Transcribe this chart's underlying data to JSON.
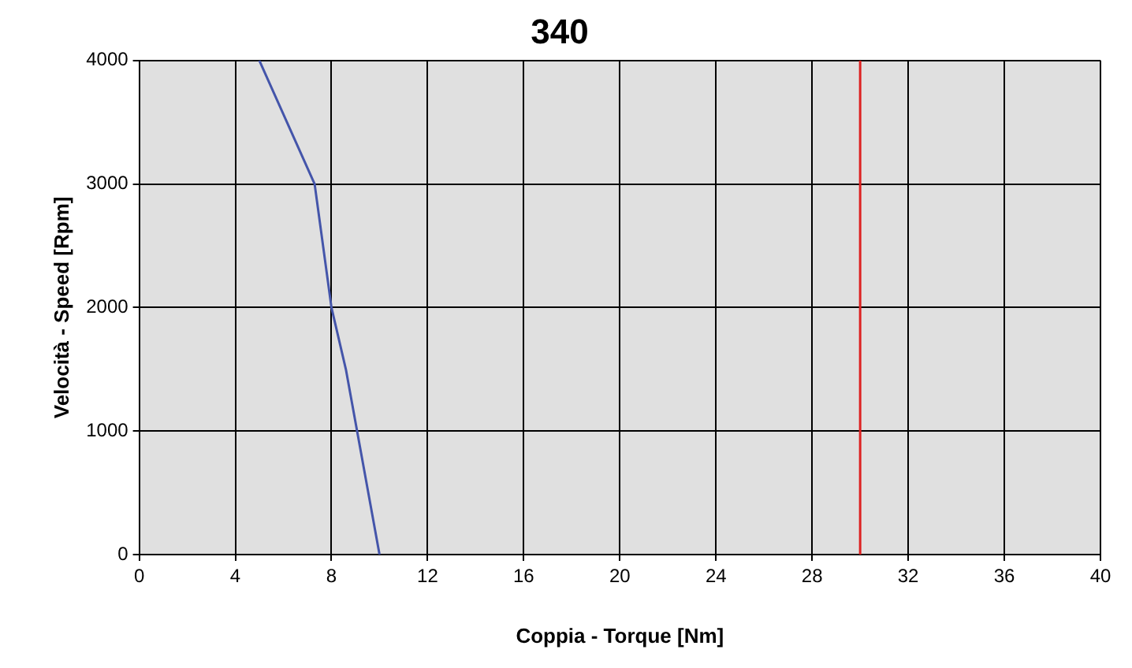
{
  "chart_data": {
    "type": "line",
    "title": "340",
    "xlabel": "Coppia - Torque [Nm]",
    "ylabel": "Velocità - Speed [Rpm]",
    "series": [
      {
        "color": "#4455aa",
        "x": [
          5,
          7.3,
          8,
          8.6,
          10
        ],
        "values": [
          4000,
          3000,
          2000,
          1500,
          0
        ]
      },
      {
        "color": "#dd2222",
        "x": [
          30,
          30,
          30
        ],
        "values": [
          0,
          1500,
          4000
        ]
      }
    ],
    "xlim": [
      0,
      40
    ],
    "xticks": [
      0,
      4,
      8,
      12,
      16,
      20,
      24,
      28,
      32,
      36,
      40
    ],
    "ylim": [
      0,
      4000
    ],
    "yticks": [
      0,
      1000,
      2000,
      3000,
      4000
    ],
    "grid": true,
    "legend": false,
    "marker": "none",
    "line_style": "solid"
  }
}
